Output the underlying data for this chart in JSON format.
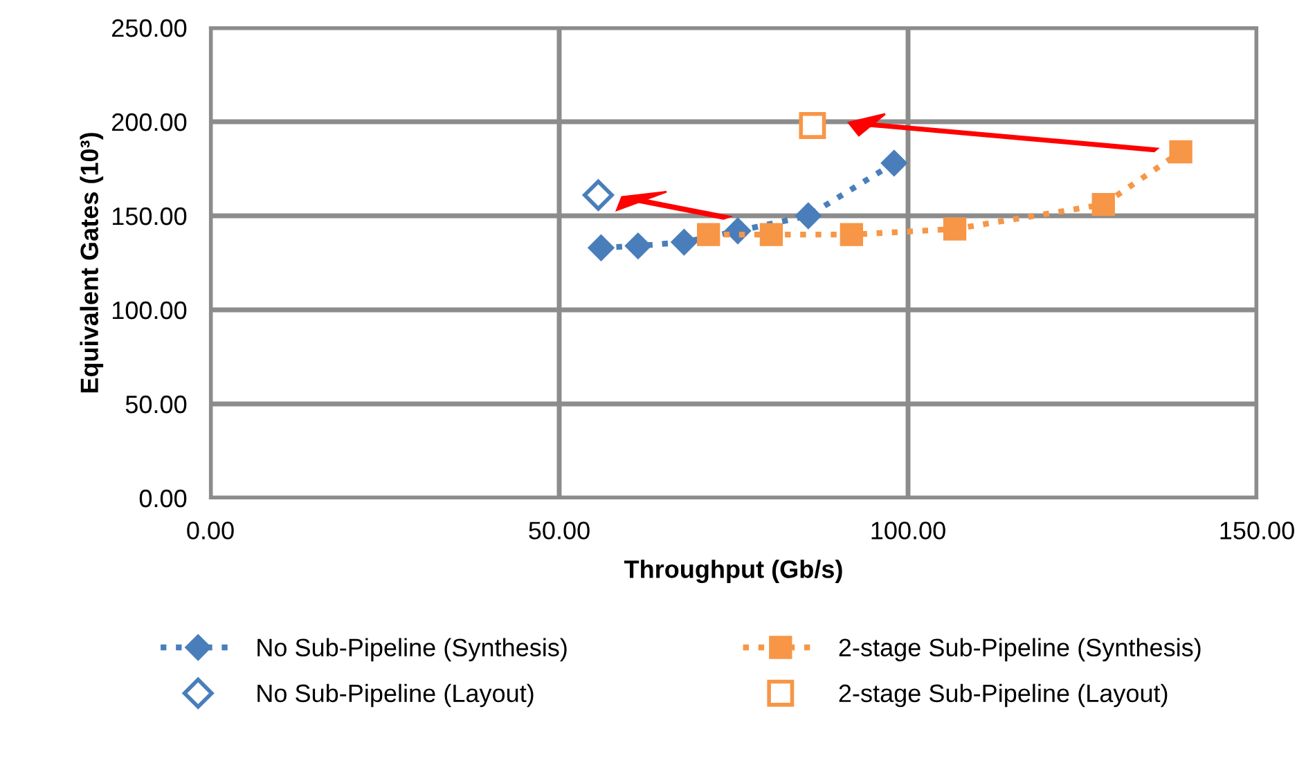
{
  "chart_data": {
    "type": "line",
    "xlabel": "Throughput (Gb/s)",
    "ylabel": "Equivalent Gates (10³)",
    "xlim": [
      0,
      150
    ],
    "ylim": [
      0,
      250
    ],
    "xticks": [
      {
        "value": 0,
        "label": "0.00"
      },
      {
        "value": 50,
        "label": "50.00"
      },
      {
        "value": 100,
        "label": "100.00"
      },
      {
        "value": 150,
        "label": "150.00"
      }
    ],
    "yticks": [
      {
        "value": 0,
        "label": "0.00"
      },
      {
        "value": 50,
        "label": "50.00"
      },
      {
        "value": 100,
        "label": "100.00"
      },
      {
        "value": 150,
        "label": "150.00"
      },
      {
        "value": 200,
        "label": "200.00"
      },
      {
        "value": 250,
        "label": "250.00"
      }
    ],
    "grid": true,
    "legend": "bottom",
    "series": [
      {
        "name": "No Sub-Pipeline (Synthesis)",
        "color": "#4a7ebb",
        "marker": "diamond",
        "line_style": "dotted",
        "x": [
          56.0,
          61.3,
          67.9,
          75.6,
          85.7,
          98.0
        ],
        "values": [
          133,
          134,
          136,
          142,
          150,
          178
        ]
      },
      {
        "name": "2-stage Sub-Pipeline (Synthesis)",
        "color": "#f79646",
        "marker": "square",
        "line_style": "dotted",
        "x": [
          71.4,
          80.4,
          91.9,
          106.7,
          128.0,
          139.1
        ],
        "values": [
          140,
          140,
          140,
          143,
          156,
          184
        ]
      },
      {
        "name": "No Sub-Pipeline (Layout)",
        "type": "scatter",
        "color": "#4a7ebb",
        "marker": "diamond",
        "x": [
          55.6
        ],
        "values": [
          161
        ]
      },
      {
        "name": "2-stage Sub-Pipeline (Layout)",
        "type": "scatter",
        "color": "#f79646",
        "marker": "square",
        "x": [
          86.3
        ],
        "values": [
          198
        ]
      }
    ]
  }
}
